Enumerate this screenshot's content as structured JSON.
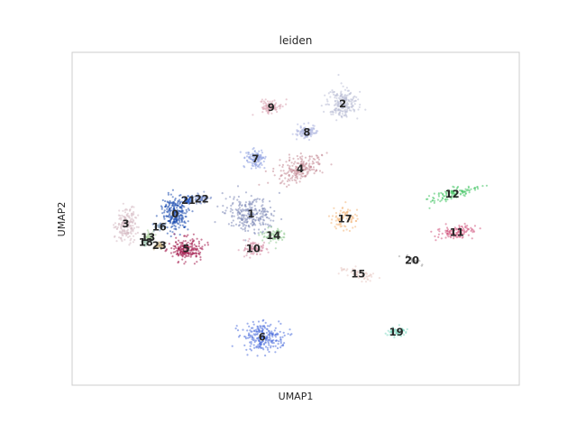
{
  "chart_data": {
    "type": "scatter",
    "title": "leiden",
    "xlabel": "UMAP1",
    "ylabel": "UMAP2",
    "xlim": [
      0,
      100
    ],
    "ylim": [
      0,
      100
    ],
    "grid": false,
    "legend": "on data",
    "ticks": false,
    "clusters": [
      {
        "label": "0",
        "x": 23.0,
        "y": 51.5,
        "color": "#1f4fb0"
      },
      {
        "label": "1",
        "x": 40.0,
        "y": 51.5,
        "color": "#7f8bb8"
      },
      {
        "label": "2",
        "x": 60.5,
        "y": 84.5,
        "color": "#b9bed6"
      },
      {
        "label": "3",
        "x": 12.0,
        "y": 48.5,
        "color": "#d6b9c3"
      },
      {
        "label": "4",
        "x": 51.0,
        "y": 65.0,
        "color": "#c58a96"
      },
      {
        "label": "5",
        "x": 25.5,
        "y": 41.0,
        "color": "#a3174a"
      },
      {
        "label": "6",
        "x": 42.5,
        "y": 14.5,
        "color": "#4f6fdc"
      },
      {
        "label": "7",
        "x": 41.0,
        "y": 68.0,
        "color": "#8c9ee0"
      },
      {
        "label": "8",
        "x": 52.5,
        "y": 76.0,
        "color": "#aeb6e0"
      },
      {
        "label": "9",
        "x": 44.5,
        "y": 83.5,
        "color": "#d9a3b0"
      },
      {
        "label": "10",
        "x": 40.5,
        "y": 41.0,
        "color": "#d68fa5"
      },
      {
        "label": "11",
        "x": 86.0,
        "y": 46.0,
        "color": "#d1587f"
      },
      {
        "label": "12",
        "x": 85.0,
        "y": 57.5,
        "color": "#44c465"
      },
      {
        "label": "13",
        "x": 17.0,
        "y": 44.5,
        "color": "#a9d19a"
      },
      {
        "label": "14",
        "x": 45.0,
        "y": 45.0,
        "color": "#8fc98f"
      },
      {
        "label": "15",
        "x": 64.0,
        "y": 33.5,
        "color": "#e8c9c2"
      },
      {
        "label": "16",
        "x": 19.5,
        "y": 47.5,
        "color": "#8fa9c7"
      },
      {
        "label": "17",
        "x": 61.0,
        "y": 50.0,
        "color": "#f2b77b"
      },
      {
        "label": "18",
        "x": 16.5,
        "y": 43.0,
        "color": "#8bb7a0"
      },
      {
        "label": "19",
        "x": 72.5,
        "y": 16.0,
        "color": "#7fd9c2"
      },
      {
        "label": "20",
        "x": 76.0,
        "y": 37.5,
        "color": "#9c9c9c"
      },
      {
        "label": "21",
        "x": 26.0,
        "y": 55.5,
        "color": "#2a5dc9"
      },
      {
        "label": "22",
        "x": 29.0,
        "y": 56.0,
        "color": "#6f86c6"
      },
      {
        "label": "23",
        "x": 19.5,
        "y": 42.0,
        "color": "#bba36d"
      }
    ]
  }
}
